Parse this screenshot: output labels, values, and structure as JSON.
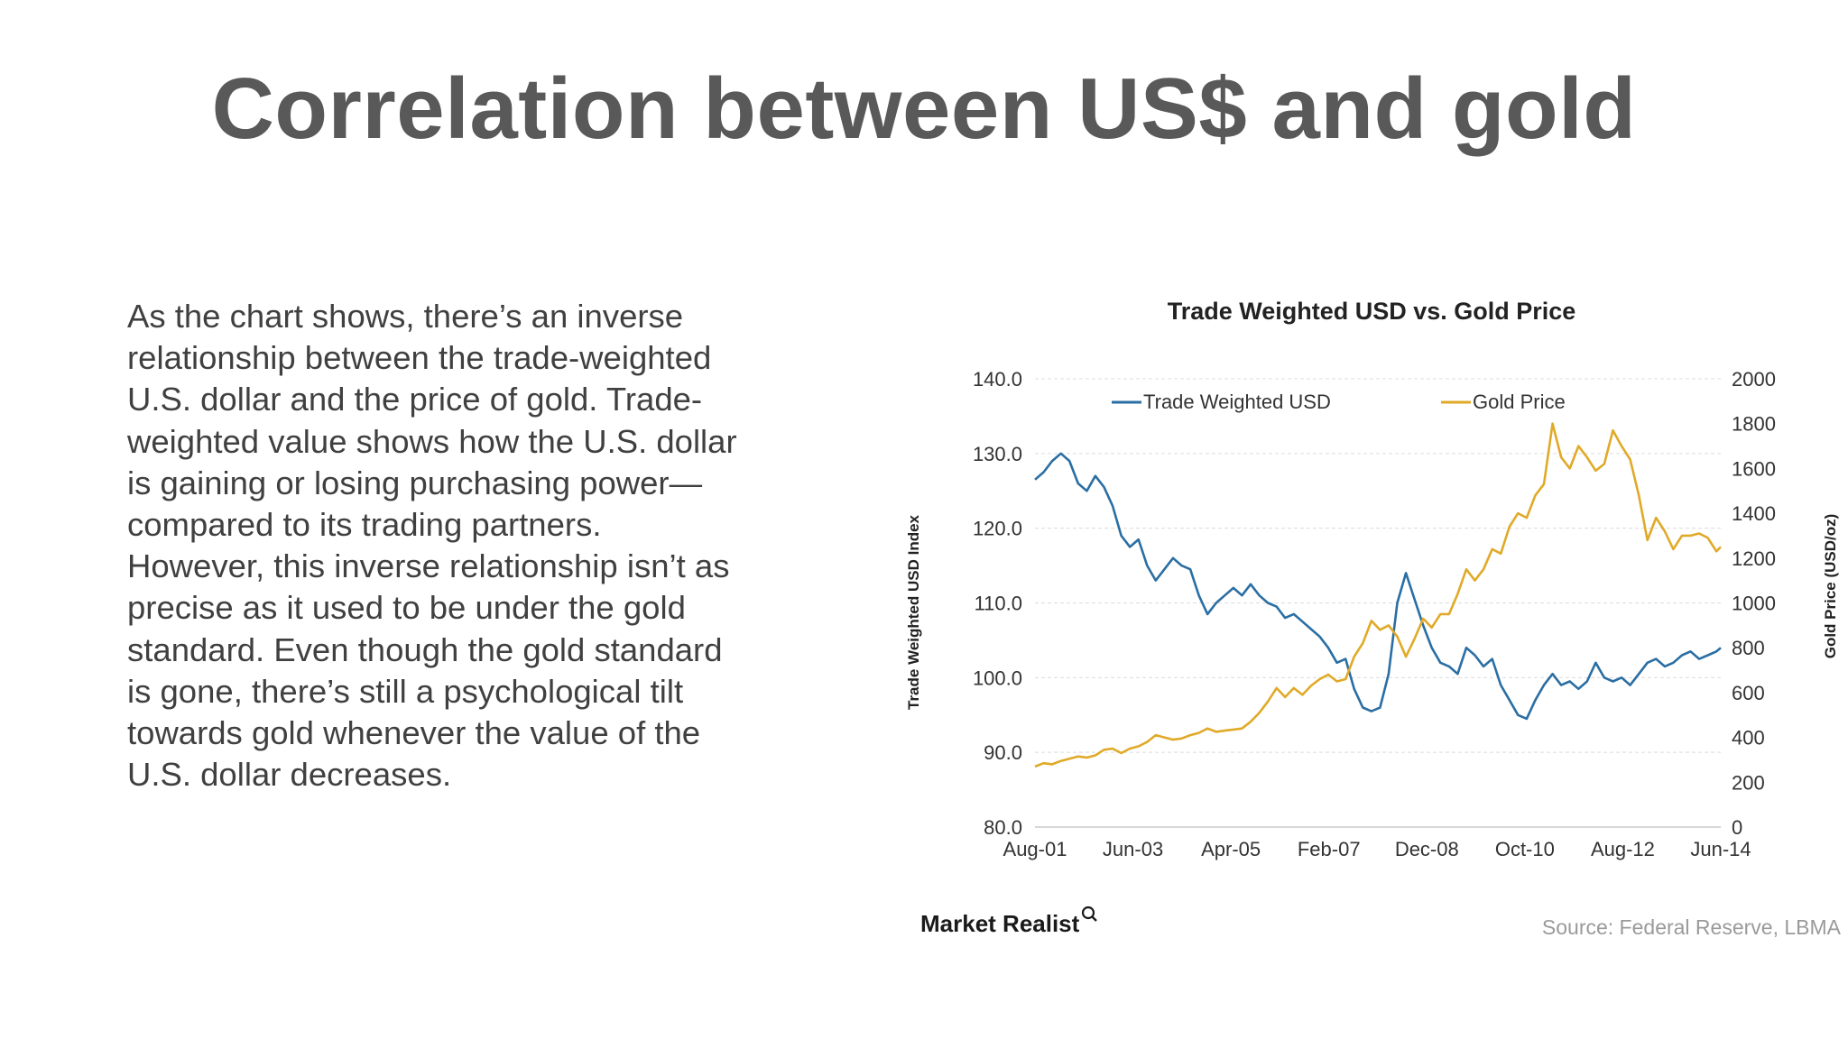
{
  "slide": {
    "title": "Correlation between US$ and gold",
    "body_lines": [
      "As the chart shows, there’s an inverse",
      "relationship between the trade-weighted",
      "U.S. dollar and the price of gold. Trade-",
      "weighted value shows how the U.S. dollar",
      "is gaining or losing purchasing power—",
      "compared to its trading partners.",
      "However, this inverse relationship isn’t as",
      "precise as it used to be under the gold",
      "standard. Even though the gold standard",
      "is gone, there’s still a psychological tilt",
      "towards gold whenever the value of the",
      "U.S. dollar decreases."
    ]
  },
  "colors": {
    "usd": "#2a6ea3",
    "gold": "#e0aa28",
    "title": "#595959",
    "text": "#404040"
  },
  "chart_data": {
    "type": "line",
    "title": "Trade Weighted USD vs. Gold Price",
    "ylabel": "Trade Weighted USD Index",
    "ylabel_right": "Gold Price (USD/oz)",
    "x_ticks": [
      "Aug-01",
      "Jun-03",
      "Apr-05",
      "Feb-07",
      "Dec-08",
      "Oct-10",
      "Aug-12",
      "Jun-14"
    ],
    "y_ticks": [
      "140.0",
      "130.0",
      "120.0",
      "110.0",
      "100.0",
      "90.0",
      "80.0"
    ],
    "y2_ticks": [
      "2000",
      "1800",
      "1600",
      "1400",
      "1200",
      "1000",
      "800",
      "600",
      "400",
      "200",
      "0"
    ],
    "ylim": [
      80,
      140
    ],
    "y2lim": [
      0,
      2000
    ],
    "xlim": [
      "2001-08",
      "2014-11"
    ],
    "legend_position": "top",
    "grid": true,
    "source": "Source: Federal Reserve, LBMA",
    "brand": "Market Realist",
    "series": [
      {
        "name": "Trade Weighted USD",
        "axis": "left",
        "x": [
          "2001-08",
          "2001-10",
          "2001-12",
          "2002-02",
          "2002-04",
          "2002-06",
          "2002-08",
          "2002-10",
          "2002-12",
          "2003-02",
          "2003-04",
          "2003-06",
          "2003-08",
          "2003-10",
          "2003-12",
          "2004-02",
          "2004-04",
          "2004-06",
          "2004-08",
          "2004-10",
          "2004-12",
          "2005-02",
          "2005-04",
          "2005-06",
          "2005-08",
          "2005-10",
          "2005-12",
          "2006-02",
          "2006-04",
          "2006-06",
          "2006-08",
          "2006-10",
          "2006-12",
          "2007-02",
          "2007-04",
          "2007-06",
          "2007-08",
          "2007-10",
          "2007-12",
          "2008-02",
          "2008-04",
          "2008-06",
          "2008-08",
          "2008-10",
          "2008-12",
          "2009-02",
          "2009-04",
          "2009-06",
          "2009-08",
          "2009-10",
          "2009-12",
          "2010-02",
          "2010-04",
          "2010-06",
          "2010-08",
          "2010-10",
          "2010-12",
          "2011-02",
          "2011-04",
          "2011-06",
          "2011-08",
          "2011-10",
          "2011-12",
          "2012-02",
          "2012-04",
          "2012-06",
          "2012-08",
          "2012-10",
          "2012-12",
          "2013-02",
          "2013-04",
          "2013-06",
          "2013-08",
          "2013-10",
          "2013-12",
          "2014-02",
          "2014-04",
          "2014-06",
          "2014-08",
          "2014-10",
          "2014-11"
        ],
        "values": [
          126.5,
          127.5,
          129.0,
          130.0,
          129.0,
          126.0,
          125.0,
          127.0,
          125.5,
          123.0,
          119.0,
          117.5,
          118.5,
          115.0,
          113.0,
          114.5,
          116.0,
          115.0,
          114.5,
          111.0,
          108.5,
          110.0,
          111.0,
          112.0,
          111.0,
          112.5,
          111.0,
          110.0,
          109.5,
          108.0,
          108.5,
          107.5,
          106.5,
          105.5,
          104.0,
          102.0,
          102.5,
          98.5,
          96.0,
          95.5,
          96.0,
          100.5,
          110.0,
          114.0,
          110.5,
          107.0,
          104.0,
          102.0,
          101.5,
          100.5,
          104.0,
          103.0,
          101.5,
          102.5,
          99.0,
          97.0,
          95.0,
          94.5,
          97.0,
          99.0,
          100.5,
          99.0,
          99.5,
          98.5,
          99.5,
          102.0,
          100.0,
          99.5,
          100.0,
          99.0,
          100.5,
          102.0,
          102.5,
          101.5,
          102.0,
          103.0,
          103.5,
          102.5,
          103.0,
          103.5,
          104.0
        ]
      },
      {
        "name": "Gold Price",
        "axis": "right",
        "x": [
          "2001-08",
          "2001-10",
          "2001-12",
          "2002-02",
          "2002-04",
          "2002-06",
          "2002-08",
          "2002-10",
          "2002-12",
          "2003-02",
          "2003-04",
          "2003-06",
          "2003-08",
          "2003-10",
          "2003-12",
          "2004-02",
          "2004-04",
          "2004-06",
          "2004-08",
          "2004-10",
          "2004-12",
          "2005-02",
          "2005-04",
          "2005-06",
          "2005-08",
          "2005-10",
          "2005-12",
          "2006-02",
          "2006-04",
          "2006-06",
          "2006-08",
          "2006-10",
          "2006-12",
          "2007-02",
          "2007-04",
          "2007-06",
          "2007-08",
          "2007-10",
          "2007-12",
          "2008-02",
          "2008-04",
          "2008-06",
          "2008-08",
          "2008-10",
          "2008-12",
          "2009-02",
          "2009-04",
          "2009-06",
          "2009-08",
          "2009-10",
          "2009-12",
          "2010-02",
          "2010-04",
          "2010-06",
          "2010-08",
          "2010-10",
          "2010-12",
          "2011-02",
          "2011-04",
          "2011-06",
          "2011-08",
          "2011-10",
          "2011-12",
          "2012-02",
          "2012-04",
          "2012-06",
          "2012-08",
          "2012-10",
          "2012-12",
          "2013-02",
          "2013-04",
          "2013-06",
          "2013-08",
          "2013-10",
          "2013-12",
          "2014-02",
          "2014-04",
          "2014-06",
          "2014-08",
          "2014-10",
          "2014-11"
        ],
        "values": [
          270,
          285,
          280,
          295,
          305,
          315,
          310,
          320,
          345,
          350,
          330,
          350,
          360,
          380,
          410,
          400,
          390,
          395,
          410,
          420,
          440,
          425,
          430,
          435,
          440,
          470,
          510,
          560,
          620,
          580,
          620,
          590,
          630,
          660,
          680,
          650,
          660,
          760,
          820,
          920,
          880,
          900,
          850,
          760,
          840,
          930,
          890,
          950,
          950,
          1040,
          1150,
          1100,
          1150,
          1240,
          1220,
          1340,
          1400,
          1380,
          1480,
          1530,
          1800,
          1650,
          1600,
          1700,
          1650,
          1590,
          1620,
          1770,
          1700,
          1640,
          1480,
          1280,
          1380,
          1320,
          1240,
          1300,
          1300,
          1310,
          1290,
          1230,
          1250
        ]
      }
    ]
  }
}
